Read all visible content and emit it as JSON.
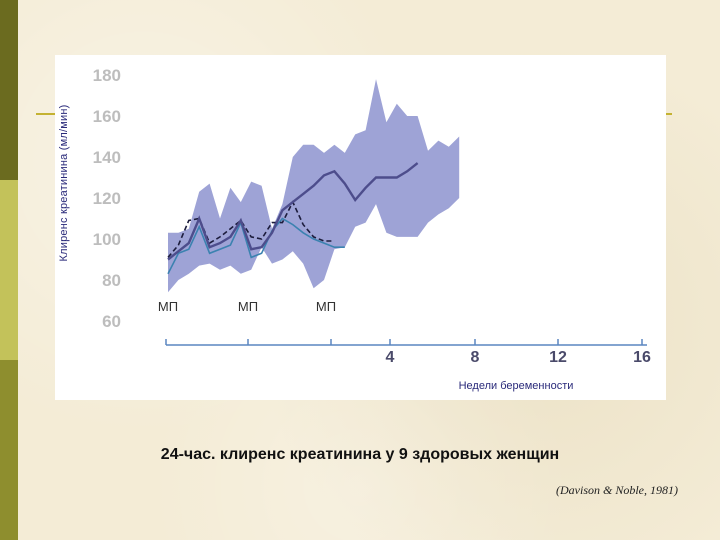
{
  "chart_data": {
    "type": "line",
    "ylabel": "Клиренс креатинина (мл/мин)",
    "xlabel": "Недели беременности",
    "yticks": [
      60,
      80,
      100,
      120,
      140,
      160,
      180
    ],
    "ylim": [
      60,
      180
    ],
    "pregnancy_ticks": [
      "4",
      "8",
      "12",
      "16"
    ],
    "menstrual_labels": [
      "МП",
      "МП",
      "МП"
    ],
    "colors": {
      "band": "#9ea3d6",
      "mean": "#4d4d8c",
      "dashed": "#1c1c3c",
      "cycle": "#3b82b0",
      "axis": "#5a86c0",
      "tick_text": "#bdbdbd",
      "xtick_text": "#4a4a6a"
    },
    "band_upper": [
      [
        0,
        103
      ],
      [
        0.5,
        103
      ],
      [
        1,
        105
      ],
      [
        1.5,
        123
      ],
      [
        2,
        127
      ],
      [
        2.5,
        110
      ],
      [
        3,
        125
      ],
      [
        3.5,
        118
      ],
      [
        4,
        128
      ],
      [
        4.5,
        126
      ],
      [
        5,
        105
      ],
      [
        5.5,
        117
      ],
      [
        6,
        140
      ],
      [
        6.5,
        146
      ],
      [
        7,
        146
      ],
      [
        7.5,
        142
      ],
      [
        8,
        146
      ],
      [
        8.5,
        142
      ],
      [
        9,
        151
      ],
      [
        9.5,
        153
      ],
      [
        10,
        178
      ],
      [
        10.5,
        157
      ],
      [
        11,
        166
      ],
      [
        11.5,
        160
      ],
      [
        12,
        160
      ],
      [
        12.5,
        143
      ],
      [
        13,
        148
      ],
      [
        13.5,
        145
      ],
      [
        14,
        150
      ]
    ],
    "band_lower": [
      [
        14,
        120
      ],
      [
        13.5,
        115
      ],
      [
        13,
        112
      ],
      [
        12.5,
        108
      ],
      [
        12,
        101
      ],
      [
        11.5,
        101
      ],
      [
        11,
        101
      ],
      [
        10.5,
        103
      ],
      [
        10,
        117
      ],
      [
        9.5,
        108
      ],
      [
        9,
        106
      ],
      [
        8.5,
        96
      ],
      [
        8,
        95
      ],
      [
        7.5,
        80
      ],
      [
        7,
        76
      ],
      [
        6.5,
        88
      ],
      [
        6,
        94
      ],
      [
        5.5,
        90
      ],
      [
        5,
        88
      ],
      [
        4.5,
        96
      ],
      [
        4,
        85
      ],
      [
        3.5,
        83
      ],
      [
        3,
        87
      ],
      [
        2.5,
        85
      ],
      [
        2,
        88
      ],
      [
        1.5,
        87
      ],
      [
        1,
        83
      ],
      [
        0.5,
        80
      ],
      [
        0,
        74
      ]
    ],
    "mean_line": [
      [
        0,
        90
      ],
      [
        0.5,
        94
      ],
      [
        1,
        98
      ],
      [
        1.5,
        110
      ],
      [
        2,
        96
      ],
      [
        2.5,
        98
      ],
      [
        3,
        101
      ],
      [
        3.5,
        109
      ],
      [
        4,
        95
      ],
      [
        4.5,
        96
      ],
      [
        5,
        103
      ],
      [
        5.5,
        114
      ],
      [
        6,
        118
      ],
      [
        6.5,
        122
      ],
      [
        7,
        126
      ],
      [
        7.5,
        131
      ],
      [
        8,
        133
      ],
      [
        8.5,
        127
      ],
      [
        9,
        119
      ],
      [
        9.5,
        125
      ],
      [
        10,
        130
      ],
      [
        10.5,
        130
      ],
      [
        11,
        130
      ],
      [
        11.5,
        133
      ],
      [
        12,
        137
      ]
    ],
    "dashed_line": [
      [
        0,
        91
      ],
      [
        0.5,
        97
      ],
      [
        1,
        109
      ],
      [
        1.5,
        110
      ],
      [
        2,
        98
      ],
      [
        2.5,
        101
      ],
      [
        3,
        105
      ],
      [
        3.5,
        109
      ],
      [
        4,
        101
      ],
      [
        4.5,
        100
      ],
      [
        5,
        108
      ],
      [
        5.5,
        108
      ],
      [
        6,
        118
      ],
      [
        6.5,
        107
      ],
      [
        7,
        101
      ],
      [
        7.5,
        99
      ],
      [
        8,
        99
      ]
    ],
    "cycle_line": [
      [
        0,
        83
      ],
      [
        0.5,
        93
      ],
      [
        1,
        95
      ],
      [
        1.5,
        106
      ],
      [
        2,
        93
      ],
      [
        2.5,
        95
      ],
      [
        3,
        97
      ],
      [
        3.5,
        108
      ],
      [
        4,
        91
      ],
      [
        4.5,
        93
      ],
      [
        5,
        104
      ],
      [
        5.5,
        110
      ],
      [
        6,
        107
      ],
      [
        6.5,
        103
      ],
      [
        7,
        100
      ],
      [
        7.5,
        98
      ],
      [
        8,
        96
      ],
      [
        8.5,
        96
      ]
    ]
  },
  "caption": "24-час. клиренс креатинина у 9 здоровых женщин",
  "source": "(Davison & Noble, 1981)",
  "colors": {
    "background": "#f4ecd6",
    "side_bar_dark": "#6b6b1f",
    "side_bar_light": "#c3c25a",
    "deco_line": "#c4b232"
  }
}
